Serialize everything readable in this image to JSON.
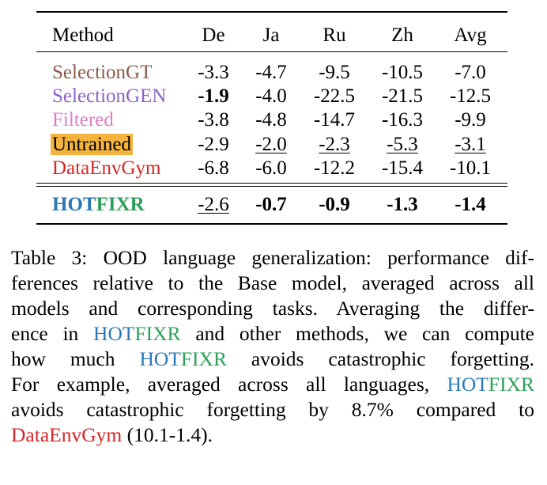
{
  "table": {
    "columns": [
      "Method",
      "De",
      "Ja",
      "Ru",
      "Zh",
      "Avg"
    ],
    "rows": [
      {
        "method": "SelectionGT",
        "color": "#8B5A4A",
        "values": [
          "-3.3",
          "-4.7",
          "-9.5",
          "-10.5",
          "-7.0"
        ]
      },
      {
        "method": "SelectionGEN",
        "color": "#8A63C8",
        "values": [
          "-1.9",
          "-4.0",
          "-22.5",
          "-21.5",
          "-12.5"
        ]
      },
      {
        "method": "Filtered",
        "color": "#E07DC8",
        "values": [
          "-3.8",
          "-4.8",
          "-14.7",
          "-16.3",
          "-9.9"
        ]
      },
      {
        "method": "Untrained",
        "color": "#000000",
        "highlight": "#F3B33D",
        "values": [
          "-2.9",
          "-2.0",
          "-2.3",
          "-5.3",
          "-3.1"
        ]
      },
      {
        "method": "DataEnvGym",
        "color": "#D62728",
        "values": [
          "-6.8",
          "-6.0",
          "-12.2",
          "-15.4",
          "-10.1"
        ]
      }
    ],
    "final_row": {
      "method": "HOTFIXR",
      "values": [
        "-2.6",
        "-0.7",
        "-0.9",
        "-1.3",
        "-1.4"
      ]
    }
  },
  "colors": {
    "hotfixr_blue": "#2A78B5",
    "hotfixr_green": "#2CA05A",
    "dataenvgym": "#D62728"
  },
  "caption": {
    "l1": "Table 3: OOD language generalization: performance dif-",
    "l2": "ferences relative to the Base model, averaged across all",
    "l3": "models and corresponding tasks. Averaging the differ-",
    "l4a": "ence in ",
    "l4b": " and other methods, we can compute",
    "l5a": "how much ",
    "l5b": " avoids catastrophic forgetting.",
    "l6a": "For example, averaged across all languages, ",
    "l7": "avoids catastrophic forgetting by 8.7% compared to",
    "l8a": "DataEnvGym",
    "l8b": " (10.1-1.4)."
  },
  "hotfixr": {
    "hot": "HOT",
    "fix": "FIXR"
  }
}
